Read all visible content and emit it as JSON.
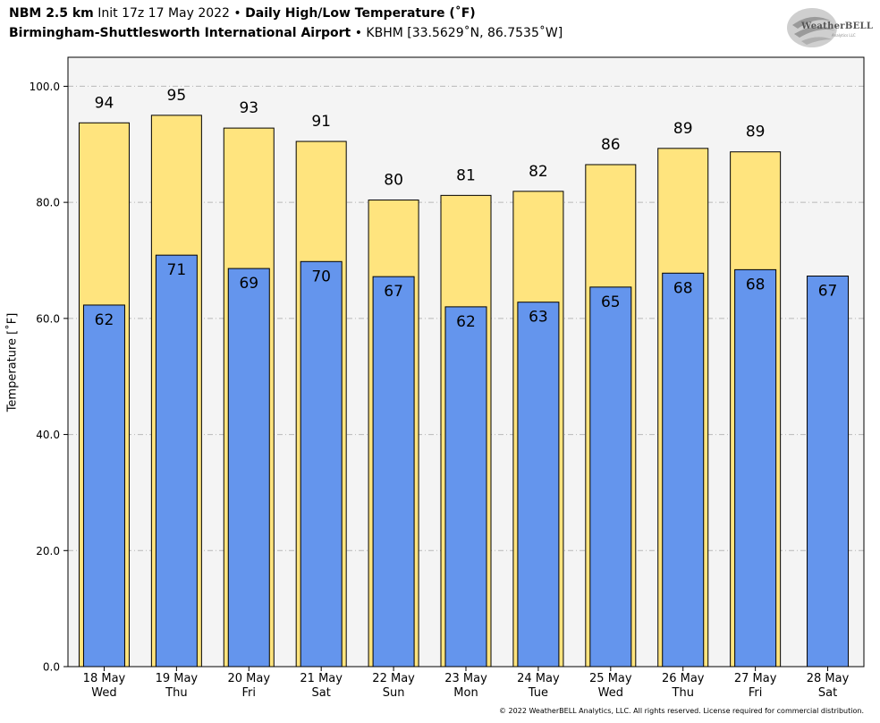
{
  "header": {
    "model": "NBM 2.5 km",
    "init": "Init 17z 17 May 2022",
    "sep1": "•",
    "title": "Daily High/Low Temperature (˚F)",
    "location": "Birmingham-Shuttlesworth International Airport",
    "sep2": "•",
    "station": "KBHM [33.5629˚N, 86.7535˚W]"
  },
  "logo": {
    "text": "WeatherBELL",
    "subtext": "Analytics LLC"
  },
  "copyright": "© 2022 WeatherBELL Analytics, LLC. All rights reserved. License required for commercial distribution.",
  "chart_data": {
    "type": "bar",
    "ylabel": "Temperature [˚F]",
    "ylim": [
      0,
      105
    ],
    "yticks": [
      0,
      20,
      40,
      60,
      80,
      100
    ],
    "ytick_labels": [
      "0.0",
      "20.0",
      "40.0",
      "60.0",
      "80.0",
      "100.0"
    ],
    "grid": true,
    "categories": [
      "18 May",
      "19 May",
      "20 May",
      "21 May",
      "22 May",
      "23 May",
      "24 May",
      "25 May",
      "26 May",
      "27 May",
      "28 May"
    ],
    "weekdays": [
      "Wed",
      "Thu",
      "Fri",
      "Sat",
      "Sun",
      "Mon",
      "Tue",
      "Wed",
      "Thu",
      "Fri",
      "Sat"
    ],
    "series": [
      {
        "key": "high",
        "color": "#ffe47e",
        "values": [
          93.7,
          95.0,
          92.8,
          90.5,
          80.4,
          81.2,
          81.9,
          86.5,
          89.3,
          88.7,
          null
        ],
        "labels": [
          "94",
          "95",
          "93",
          "91",
          "80",
          "81",
          "82",
          "86",
          "89",
          "89",
          ""
        ]
      },
      {
        "key": "low",
        "color": "#6495ed",
        "values": [
          62.3,
          70.9,
          68.6,
          69.8,
          67.2,
          62.0,
          62.8,
          65.4,
          67.8,
          68.4,
          67.3
        ],
        "labels": [
          "62",
          "71",
          "69",
          "70",
          "67",
          "62",
          "63",
          "65",
          "68",
          "68",
          "67"
        ]
      }
    ]
  }
}
